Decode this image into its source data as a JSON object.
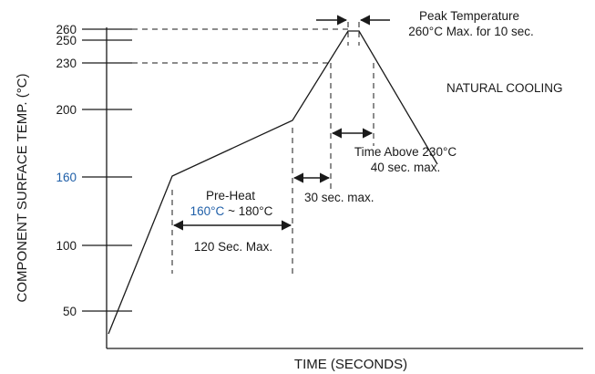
{
  "chart_data": {
    "type": "line",
    "xlabel": "TIME (SECONDS)",
    "ylabel": "COMPONENT SURFACE TEMP.  (°C)",
    "y_ticks": [
      {
        "value": 260,
        "label": "260",
        "color": "#1a1a1a"
      },
      {
        "value": 250,
        "label": "250",
        "color": "#1a1a1a"
      },
      {
        "value": 230,
        "label": "230",
        "color": "#1a1a1a"
      },
      {
        "value": 200,
        "label": "200",
        "color": "#1a1a1a"
      },
      {
        "value": 160,
        "label": "160",
        "color": "#1f5fa8"
      },
      {
        "value": 100,
        "label": "100",
        "color": "#1a1a1a"
      },
      {
        "value": 50,
        "label": "50",
        "color": "#1a1a1a"
      }
    ],
    "profile_points_temp": [
      35,
      160,
      190,
      260,
      260,
      180
    ],
    "grid": false,
    "annotations": {
      "peak_title": "Peak Temperature",
      "peak_detail": "260°C Max. for 10 sec.",
      "natural_cooling": "NATURAL COOLING",
      "time_above_title": "Time Above 230°C",
      "time_above_detail": "40 sec. max.",
      "ramp_limit": "30 sec. max.",
      "preheat_title": "Pre-Heat",
      "preheat_range_low": "160°C",
      "preheat_range_high": " ~ 180°C",
      "preheat_duration": "120 Sec. Max."
    },
    "colors": {
      "line": "#1a1a1a",
      "highlight": "#1f5fa8"
    }
  }
}
